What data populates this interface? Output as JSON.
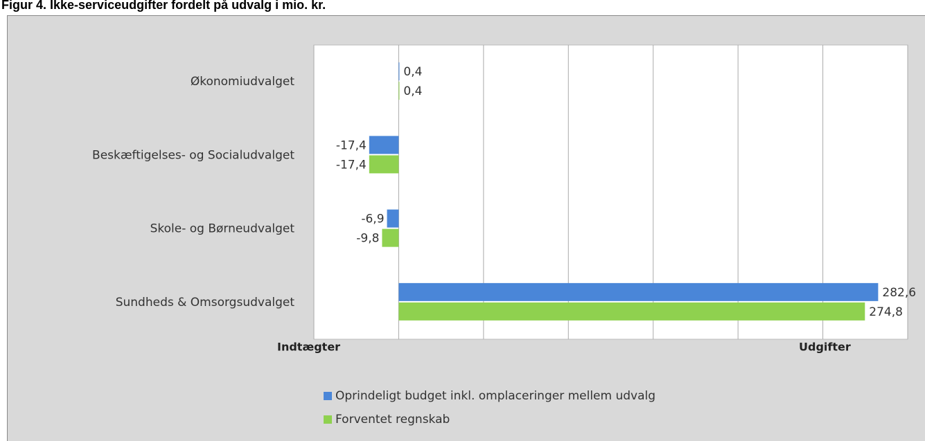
{
  "chart_data": {
    "type": "hbar",
    "title": "Figur 4. Ikke-serviceudgifter fordelt på udvalg i mio. kr.",
    "categories": [
      "Økonomiudvalget",
      "Beskæftigelses- og Socialudvalget",
      "Skole- og Børneudvalget",
      "Sundheds & Omsorgsudvalget"
    ],
    "series": [
      {
        "name": "Oprindeligt budget inkl. omplaceringer mellem udvalg",
        "color": "#4a86d8",
        "values": [
          0.4,
          -17.4,
          -6.9,
          282.6
        ],
        "value_labels": [
          "0,4",
          "-17,4",
          "-6,9",
          "282,6"
        ]
      },
      {
        "name": "Forventet regnskab",
        "color": "#8fd14f",
        "values": [
          0.4,
          -17.4,
          -9.8,
          274.8
        ],
        "value_labels": [
          "0,4",
          "-17,4",
          "-9,8",
          "274,8"
        ]
      }
    ],
    "xlim": [
      -50,
      300
    ],
    "xticks": [
      -50,
      0,
      50,
      100,
      150,
      200,
      250,
      300
    ],
    "grid": true,
    "annotations": [
      "Indtægter",
      "Udgifter"
    ]
  }
}
